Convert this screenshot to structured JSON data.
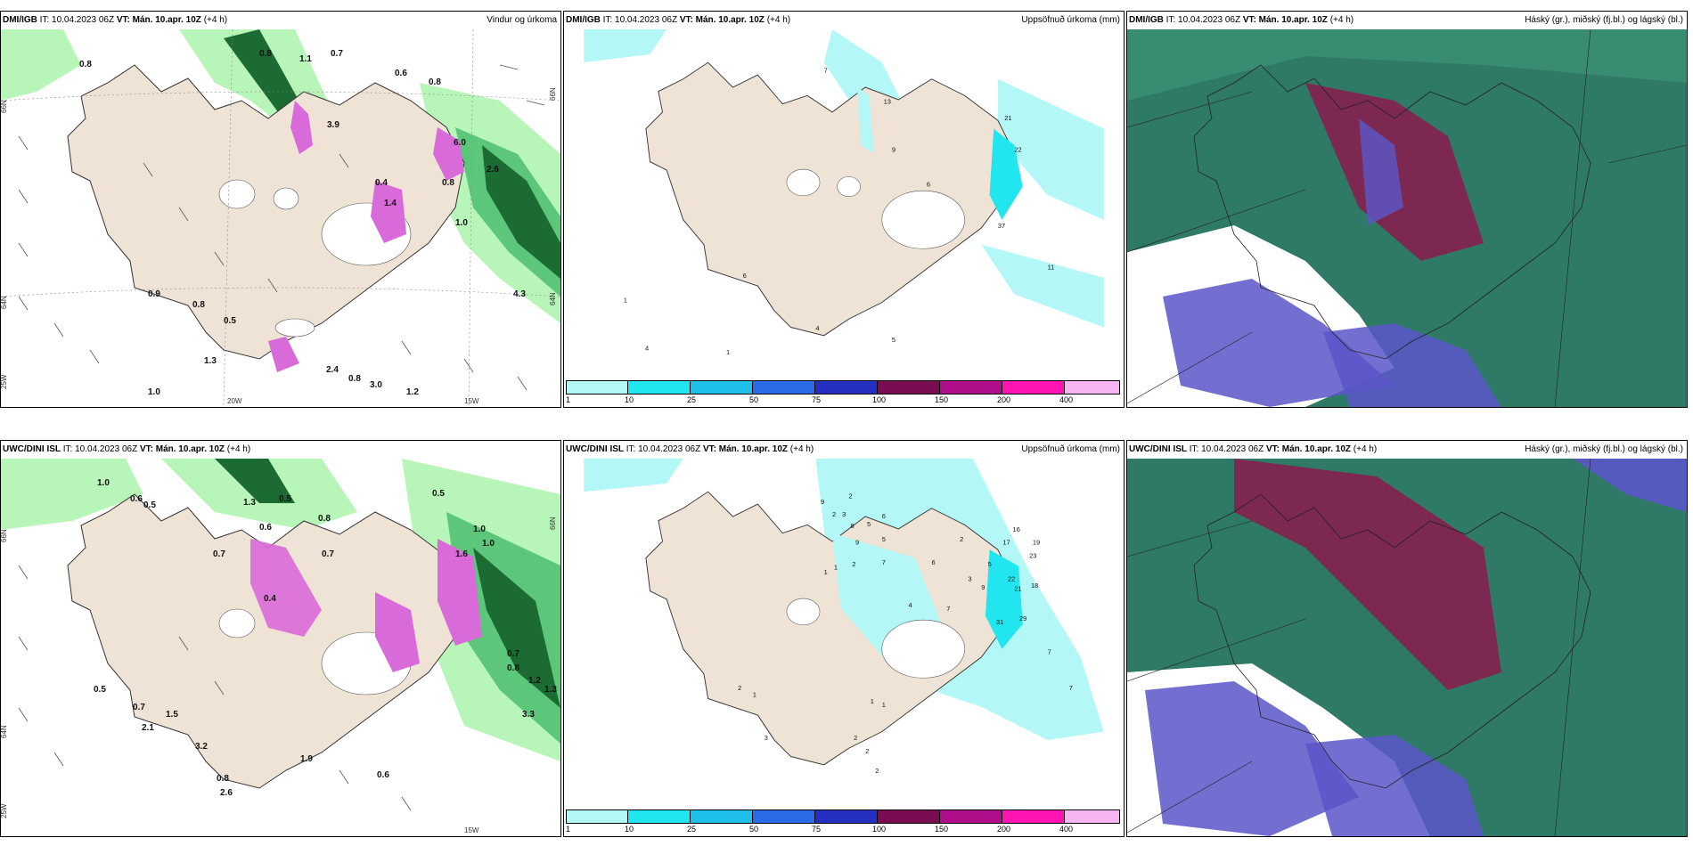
{
  "panels": [
    {
      "source": "DMI/IGB",
      "it": "IT: 10.04.2023 06Z",
      "vt": "VT: Mán. 10.apr. 10Z",
      "lead": "(+4 h)",
      "title": "Vindur og úrkoma",
      "lat_labels": [
        "66N",
        "64N",
        "25W"
      ],
      "lon_labels": [
        "20W",
        "15W",
        "66N",
        "64N"
      ],
      "values": [
        "0.8",
        "0.8",
        "1.1",
        "0.7",
        "0.6",
        "0.8",
        "3.9",
        "6.0",
        "2.6",
        "0.4",
        "1.4",
        "0.8",
        "1.0",
        "0.9",
        "0.8",
        "0.5",
        "1.3",
        "2.4",
        "0.8",
        "3.0",
        "1.2",
        "1.0",
        "4.3"
      ]
    },
    {
      "source": "DMI/IGB",
      "it": "IT: 10.04.2023 06Z",
      "vt": "VT: Mán. 10.apr. 10Z",
      "lead": "(+4 h)",
      "title": "Uppsöfnuð úrkoma (mm)",
      "values": [
        "7",
        "13",
        "9",
        "21",
        "22",
        "6",
        "37",
        "11",
        "6",
        "1",
        "4",
        "1",
        "4",
        "5"
      ],
      "colorbar": {
        "labels": [
          "1",
          "10",
          "25",
          "50",
          "75",
          "100",
          "150",
          "200",
          "400"
        ],
        "colors": [
          "#b3f7f7",
          "#22e6ef",
          "#1ec0ea",
          "#2a6be8",
          "#2530c2",
          "#7a0c52",
          "#b00d8a",
          "#ff14b4",
          "#f6b4f2"
        ]
      }
    },
    {
      "source": "DMI/IGB",
      "it": "IT: 10.04.2023 06Z",
      "vt": "VT: Mán. 10.apr. 10Z",
      "lead": "(+4 h)",
      "title": "Háský (gr.), miðský (fj.bl.) og lágský (bl.)"
    },
    {
      "source": "UWC/DINI ISL",
      "it": "IT: 10.04.2023 06Z",
      "vt": "VT: Mán. 10.apr. 10Z",
      "lead": "(+4 h)",
      "title": "",
      "lat_labels": [
        "66N",
        "64N",
        "25W"
      ],
      "lon_labels": [
        "15W",
        "66N"
      ],
      "values": [
        "1.0",
        "0.6",
        "0.5",
        "1.3",
        "0.5",
        "0.6",
        "0.8",
        "0.7",
        "0.4",
        "0.7",
        "0.5",
        "1.0",
        "1.0",
        "1.6",
        "0.7",
        "0.8",
        "3.3",
        "1.2",
        "1.3",
        "0.5",
        "0.7",
        "1.5",
        "2.1",
        "3.2",
        "1.9",
        "0.8",
        "2.6",
        "0.6"
      ]
    },
    {
      "source": "UWC/DINI ISL",
      "it": "IT: 10.04.2023 06Z",
      "vt": "VT: Mán. 10.apr. 10Z",
      "lead": "(+4 h)",
      "title": "Uppsöfnuð úrkoma (mm)",
      "values": [
        "9",
        "2",
        "2",
        "3",
        "5",
        "8",
        "6",
        "9",
        "5",
        "7",
        "1",
        "2",
        "1",
        "16",
        "17",
        "19",
        "23",
        "22",
        "21",
        "18",
        "4",
        "6",
        "9",
        "7",
        "5",
        "3",
        "2",
        "31",
        "29",
        "7",
        "7",
        "2",
        "1",
        "1",
        "3",
        "1",
        "2",
        "2",
        "2"
      ],
      "colorbar": {
        "labels": [
          "1",
          "10",
          "25",
          "50",
          "75",
          "100",
          "150",
          "200",
          "400"
        ],
        "colors": [
          "#b3f7f7",
          "#22e6ef",
          "#1ec0ea",
          "#2a6be8",
          "#2530c2",
          "#7a0c52",
          "#b00d8a",
          "#ff14b4",
          "#f6b4f2"
        ]
      }
    },
    {
      "source": "UWC/DINI ISL",
      "it": "IT: 10.04.2023 06Z",
      "vt": "VT: Mán. 10.apr. 10Z",
      "lead": "(+4 h)",
      "title": "Háský (gr.), miðský (fj.bl.) og lágský (bl.)"
    }
  ],
  "colors": {
    "land": "#efe3d6",
    "precip_light": "#b8f5b8",
    "precip_mid": "#5cc77a",
    "precip_dark": "#1c6b32",
    "precip_purple": "#d96ad9",
    "cloud_high": "#2f7a66",
    "cloud_mid": "#5b56c9",
    "cloud_low": "#8a1a4e"
  }
}
